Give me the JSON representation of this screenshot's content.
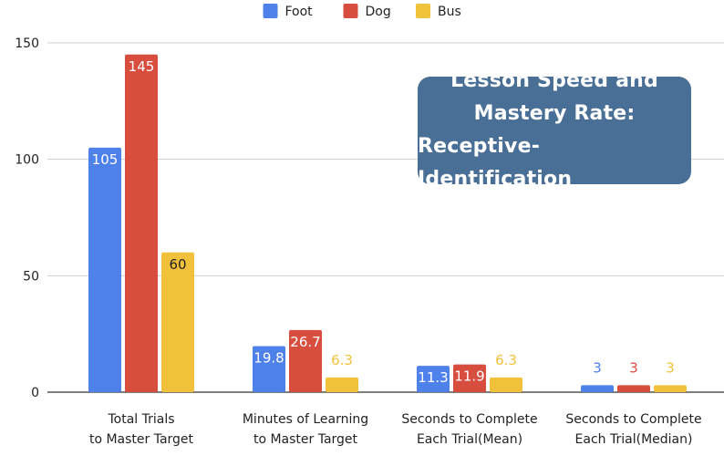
{
  "chart_data": {
    "type": "bar",
    "title_lines": [
      "Lesson Speed and",
      "Mastery Rate:",
      "Receptive-Identification"
    ],
    "categories": [
      [
        "Total Trials",
        "to Master Target"
      ],
      [
        "Minutes of Learning",
        "to Master Target"
      ],
      [
        "Seconds to Complete",
        "Each Trial(Mean)"
      ],
      [
        "Seconds to Complete",
        "Each Trial(Median)"
      ]
    ],
    "series": [
      {
        "name": "Foot",
        "color": "#4f81ea",
        "values": [
          105,
          19.8,
          11.3,
          3
        ],
        "labels": [
          "105",
          "19.8",
          "11.3",
          "3"
        ]
      },
      {
        "name": "Dog",
        "color": "#d74e3f",
        "values": [
          145,
          26.7,
          11.9,
          3
        ],
        "labels": [
          "145",
          "26.7",
          "11.9",
          "3"
        ]
      },
      {
        "name": "Bus",
        "color": "#f2c13c",
        "values": [
          60,
          6.3,
          6.3,
          3
        ],
        "labels": [
          "60",
          "6.3",
          "6.3",
          "3"
        ]
      }
    ],
    "yticks": [
      "0",
      "50",
      "100",
      "150"
    ],
    "ylim": [
      0,
      150
    ],
    "grid": true,
    "legend_position": "top-center"
  }
}
